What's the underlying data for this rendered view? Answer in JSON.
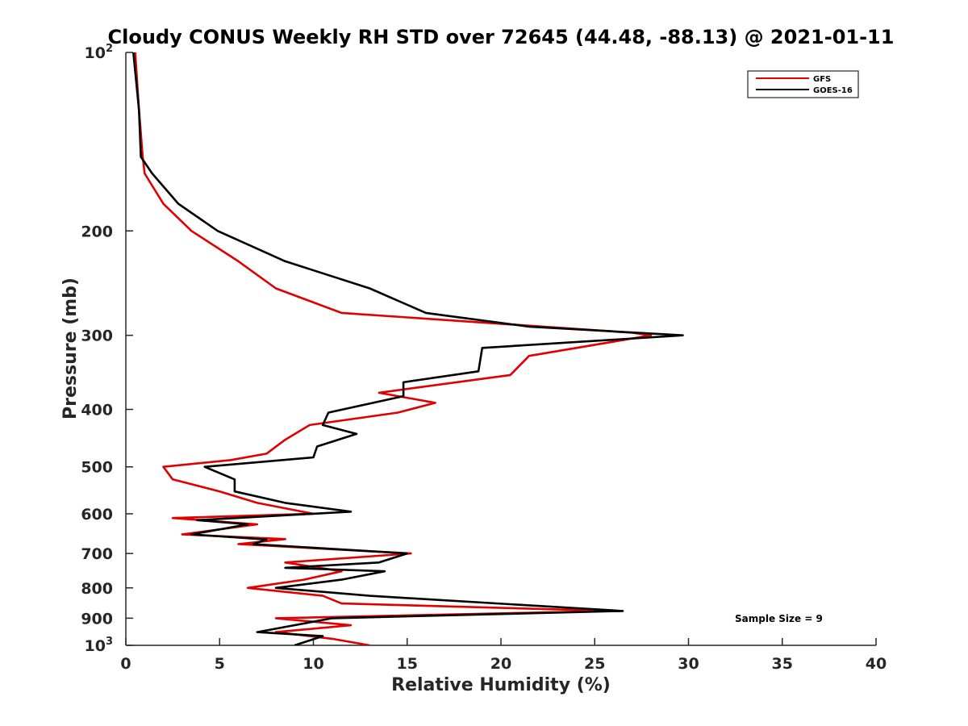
{
  "chart_data": {
    "type": "line",
    "title": "Cloudy CONUS Weekly RH STD over 72645 (44.48, -88.13) @ 2021-01-11",
    "xlabel": "Relative Humidity (%)",
    "ylabel": "Pressure (mb)",
    "xlim": [
      0,
      40
    ],
    "ylim": [
      100,
      1000
    ],
    "y_scale": "log",
    "y_reversed": true,
    "grid": false,
    "legend_position": "top-right",
    "x_ticks": [
      "0",
      "5",
      "10",
      "15",
      "20",
      "25",
      "30",
      "35",
      "40"
    ],
    "y_ticks": [
      {
        "value": 100,
        "base": "10",
        "exp": "2"
      },
      {
        "value": 200,
        "label": "200"
      },
      {
        "value": 300,
        "label": "300"
      },
      {
        "value": 400,
        "label": "400"
      },
      {
        "value": 500,
        "label": "500"
      },
      {
        "value": 600,
        "label": "600"
      },
      {
        "value": 700,
        "label": "700"
      },
      {
        "value": 800,
        "label": "800"
      },
      {
        "value": 900,
        "label": "900"
      },
      {
        "value": 1000,
        "base": "10",
        "exp": "3"
      }
    ],
    "annotation": "Sample Size = 9",
    "series": [
      {
        "name": "GFS",
        "color": "#e00000",
        "points": [
          [
            0.5,
            100
          ],
          [
            0.7,
            125
          ],
          [
            0.9,
            150
          ],
          [
            1.0,
            160
          ],
          [
            2.0,
            180
          ],
          [
            3.5,
            200
          ],
          [
            6.0,
            225
          ],
          [
            8.0,
            250
          ],
          [
            11.5,
            275
          ],
          [
            27.0,
            297
          ],
          [
            28.0,
            300
          ],
          [
            21.5,
            325
          ],
          [
            20.5,
            350
          ],
          [
            13.5,
            375
          ],
          [
            16.5,
            390
          ],
          [
            14.5,
            405
          ],
          [
            9.8,
            425
          ],
          [
            8.5,
            450
          ],
          [
            7.5,
            475
          ],
          [
            5.6,
            487
          ],
          [
            2.0,
            500
          ],
          [
            2.5,
            525
          ],
          [
            5.0,
            550
          ],
          [
            7.0,
            575
          ],
          [
            10.0,
            600
          ],
          [
            2.5,
            610
          ],
          [
            7.0,
            625
          ],
          [
            3.0,
            650
          ],
          [
            8.5,
            662
          ],
          [
            6.0,
            675
          ],
          [
            15.2,
            700
          ],
          [
            8.5,
            725
          ],
          [
            11.5,
            750
          ],
          [
            9.5,
            775
          ],
          [
            6.5,
            800
          ],
          [
            10.5,
            825
          ],
          [
            11.5,
            850
          ],
          [
            26.0,
            875
          ],
          [
            8.0,
            900
          ],
          [
            12.0,
            925
          ],
          [
            8.0,
            950
          ],
          [
            11.0,
            975
          ],
          [
            13.0,
            1000
          ]
        ]
      },
      {
        "name": "GOES-16",
        "color": "#000000",
        "points": [
          [
            0.4,
            100
          ],
          [
            0.7,
            125
          ],
          [
            0.8,
            150
          ],
          [
            1.4,
            160
          ],
          [
            2.8,
            180
          ],
          [
            4.9,
            200
          ],
          [
            8.5,
            225
          ],
          [
            13.0,
            250
          ],
          [
            16.0,
            275
          ],
          [
            21.5,
            290
          ],
          [
            29.7,
            300
          ],
          [
            19.0,
            315
          ],
          [
            18.8,
            345
          ],
          [
            14.8,
            360
          ],
          [
            14.8,
            380
          ],
          [
            10.8,
            405
          ],
          [
            10.5,
            425
          ],
          [
            12.3,
            440
          ],
          [
            10.2,
            462
          ],
          [
            10.0,
            482
          ],
          [
            4.2,
            500
          ],
          [
            5.8,
            525
          ],
          [
            5.8,
            550
          ],
          [
            8.5,
            575
          ],
          [
            12.0,
            595
          ],
          [
            3.8,
            615
          ],
          [
            6.5,
            625
          ],
          [
            3.5,
            650
          ],
          [
            7.5,
            663
          ],
          [
            6.8,
            675
          ],
          [
            15.0,
            700
          ],
          [
            13.5,
            725
          ],
          [
            8.5,
            740
          ],
          [
            13.8,
            750
          ],
          [
            11.5,
            775
          ],
          [
            8.0,
            800
          ],
          [
            13.0,
            825
          ],
          [
            26.5,
            875
          ],
          [
            11.0,
            900
          ],
          [
            7.0,
            950
          ],
          [
            10.5,
            965
          ],
          [
            9.0,
            1000
          ]
        ]
      }
    ]
  }
}
